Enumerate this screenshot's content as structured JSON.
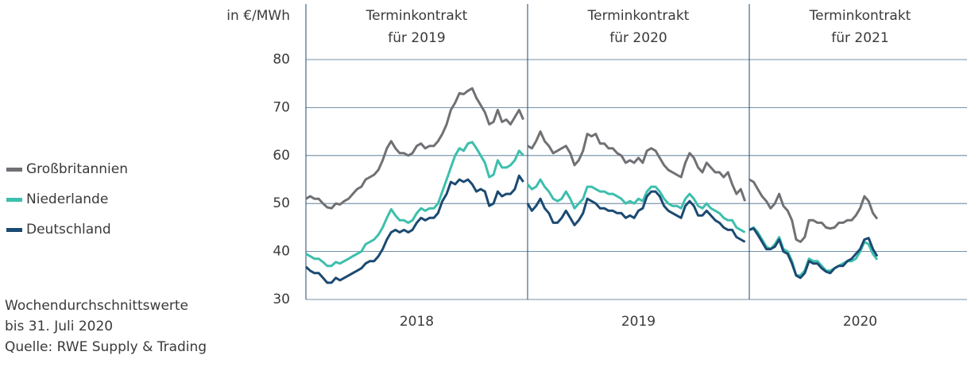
{
  "chart_data": {
    "type": "line",
    "y_label": "in €/MWh",
    "ylim": [
      30,
      80
    ],
    "yticks": [
      30,
      40,
      50,
      60,
      70,
      80
    ],
    "grid": true,
    "categories": [
      "2018",
      "2019",
      "2020"
    ],
    "headers": [
      [
        "Terminkontrakt",
        "für 2019"
      ],
      [
        "Terminkontrakt",
        "für 2020"
      ],
      [
        "Terminkontrakt",
        "für 2021"
      ]
    ],
    "series": [
      {
        "name": "Großbritannien",
        "color": "#707075",
        "values": [
          [
            51,
            51.5,
            51,
            51,
            50,
            49.2,
            49,
            50,
            49.8,
            50.5,
            51,
            52,
            53,
            53.5,
            55,
            55.5,
            56,
            57,
            59,
            61.5,
            63,
            61.5,
            60.5,
            60.5,
            60,
            60.5,
            62,
            62.5,
            61.5,
            62,
            62,
            63,
            64.5,
            66.5,
            69.5,
            71,
            73,
            72.8,
            73.5,
            74,
            72,
            70.5,
            69,
            66.5,
            67,
            69.5,
            67,
            67.5,
            66.5,
            68,
            69.5,
            67.5
          ],
          [
            62,
            61.5,
            63,
            65,
            63,
            62,
            60.5,
            61,
            61.5,
            62,
            60.5,
            58,
            59,
            61,
            64.5,
            64,
            64.5,
            62.5,
            62.5,
            61.5,
            61.5,
            60.5,
            60,
            58.5,
            59,
            58.5,
            59.5,
            58.5,
            61,
            61.5,
            61,
            59.5,
            58,
            57,
            56.5,
            56,
            55.5,
            58.5,
            60.5,
            59.5,
            57.5,
            56.5,
            58.5,
            57.5,
            56.5,
            56.5,
            55.5,
            56.5,
            54,
            52,
            53,
            50.5
          ],
          [
            55,
            54.5,
            53,
            51.5,
            50.5,
            49,
            50,
            52,
            49.5,
            48.5,
            46.5,
            42.5,
            42,
            43,
            46.5,
            46.5,
            46,
            46,
            45,
            44.8,
            45,
            46,
            46,
            46.5,
            46.5,
            47.5,
            49,
            51.5,
            50.5,
            48,
            46.8
          ]
        ]
      },
      {
        "name": "Niederlande",
        "color": "#3dbfad",
        "values": [
          [
            39.5,
            39,
            38.5,
            38.5,
            37.8,
            37,
            37,
            37.8,
            37.5,
            38,
            38.5,
            39,
            39.5,
            40,
            41.5,
            42,
            42.5,
            43.5,
            45,
            47,
            48.8,
            47.5,
            46.5,
            46.5,
            46,
            46.5,
            48,
            49,
            48.5,
            49,
            49,
            50,
            52.5,
            55,
            57.5,
            60,
            61.5,
            61,
            62.5,
            62.8,
            61.5,
            60,
            58.5,
            55.5,
            56,
            59,
            57.5,
            57.5,
            58,
            59,
            61,
            60
          ],
          [
            54,
            53,
            53.5,
            55,
            53.5,
            52.5,
            51,
            50.5,
            51,
            52.5,
            51,
            49,
            50,
            51,
            53.5,
            53.5,
            53,
            52.5,
            52.5,
            52,
            52,
            51.5,
            51,
            50,
            50.5,
            50,
            51,
            50.5,
            52.5,
            53.5,
            53.5,
            52.5,
            51,
            50,
            49.5,
            49.5,
            49,
            51,
            52,
            51,
            49.5,
            49,
            50,
            49,
            48.5,
            48,
            47,
            46.5,
            46.5,
            45,
            44.5,
            44
          ],
          [
            44.5,
            45,
            44,
            42.5,
            41,
            40.5,
            41.5,
            43,
            40.5,
            40,
            38,
            35,
            35,
            36,
            38.5,
            38,
            38,
            37,
            36,
            36,
            36.5,
            37,
            37.5,
            38,
            38,
            38.5,
            40,
            42,
            41.5,
            39.5,
            38.3
          ]
        ]
      },
      {
        "name": "Deutschland",
        "color": "#1b4a72",
        "values": [
          [
            36.8,
            36,
            35.5,
            35.5,
            34.5,
            33.5,
            33.5,
            34.5,
            34,
            34.5,
            35,
            35.5,
            36,
            36.5,
            37.5,
            38,
            38,
            39,
            40.5,
            42.5,
            44,
            44.5,
            44,
            44.5,
            44,
            44.5,
            46,
            47,
            46.5,
            47,
            47,
            48,
            50.5,
            52,
            54.5,
            54,
            55,
            54.5,
            55,
            54,
            52.5,
            53,
            52.5,
            49.5,
            50,
            52.5,
            51.5,
            52,
            52,
            53,
            55.8,
            54.5
          ],
          [
            50,
            48.5,
            49.5,
            51,
            49,
            48,
            46,
            46,
            47,
            48.5,
            47,
            45.5,
            46.5,
            48,
            51,
            50.5,
            50,
            49,
            49,
            48.5,
            48.5,
            48,
            48,
            47,
            47.5,
            47,
            48.5,
            49,
            51.5,
            52.5,
            52.5,
            51.5,
            49.5,
            48.5,
            48,
            47.5,
            47,
            49.5,
            50.5,
            49.5,
            47.5,
            47.5,
            48.5,
            47.5,
            46.5,
            46,
            45,
            44.5,
            44.5,
            43,
            42.5,
            42
          ],
          [
            44.5,
            44.8,
            43.5,
            42,
            40.5,
            40.5,
            41,
            42.5,
            40,
            39.5,
            37.5,
            35,
            34.5,
            35.5,
            38,
            37.5,
            37.5,
            36.5,
            35.8,
            35.5,
            36.5,
            37,
            37,
            38,
            38.5,
            39.5,
            40.5,
            42.5,
            42.8,
            40.5,
            39
          ]
        ]
      }
    ],
    "notes": [
      "Wochendurchschnittswerte",
      "bis 31. Juli 2020",
      "Quelle: RWE Supply & Trading"
    ]
  }
}
